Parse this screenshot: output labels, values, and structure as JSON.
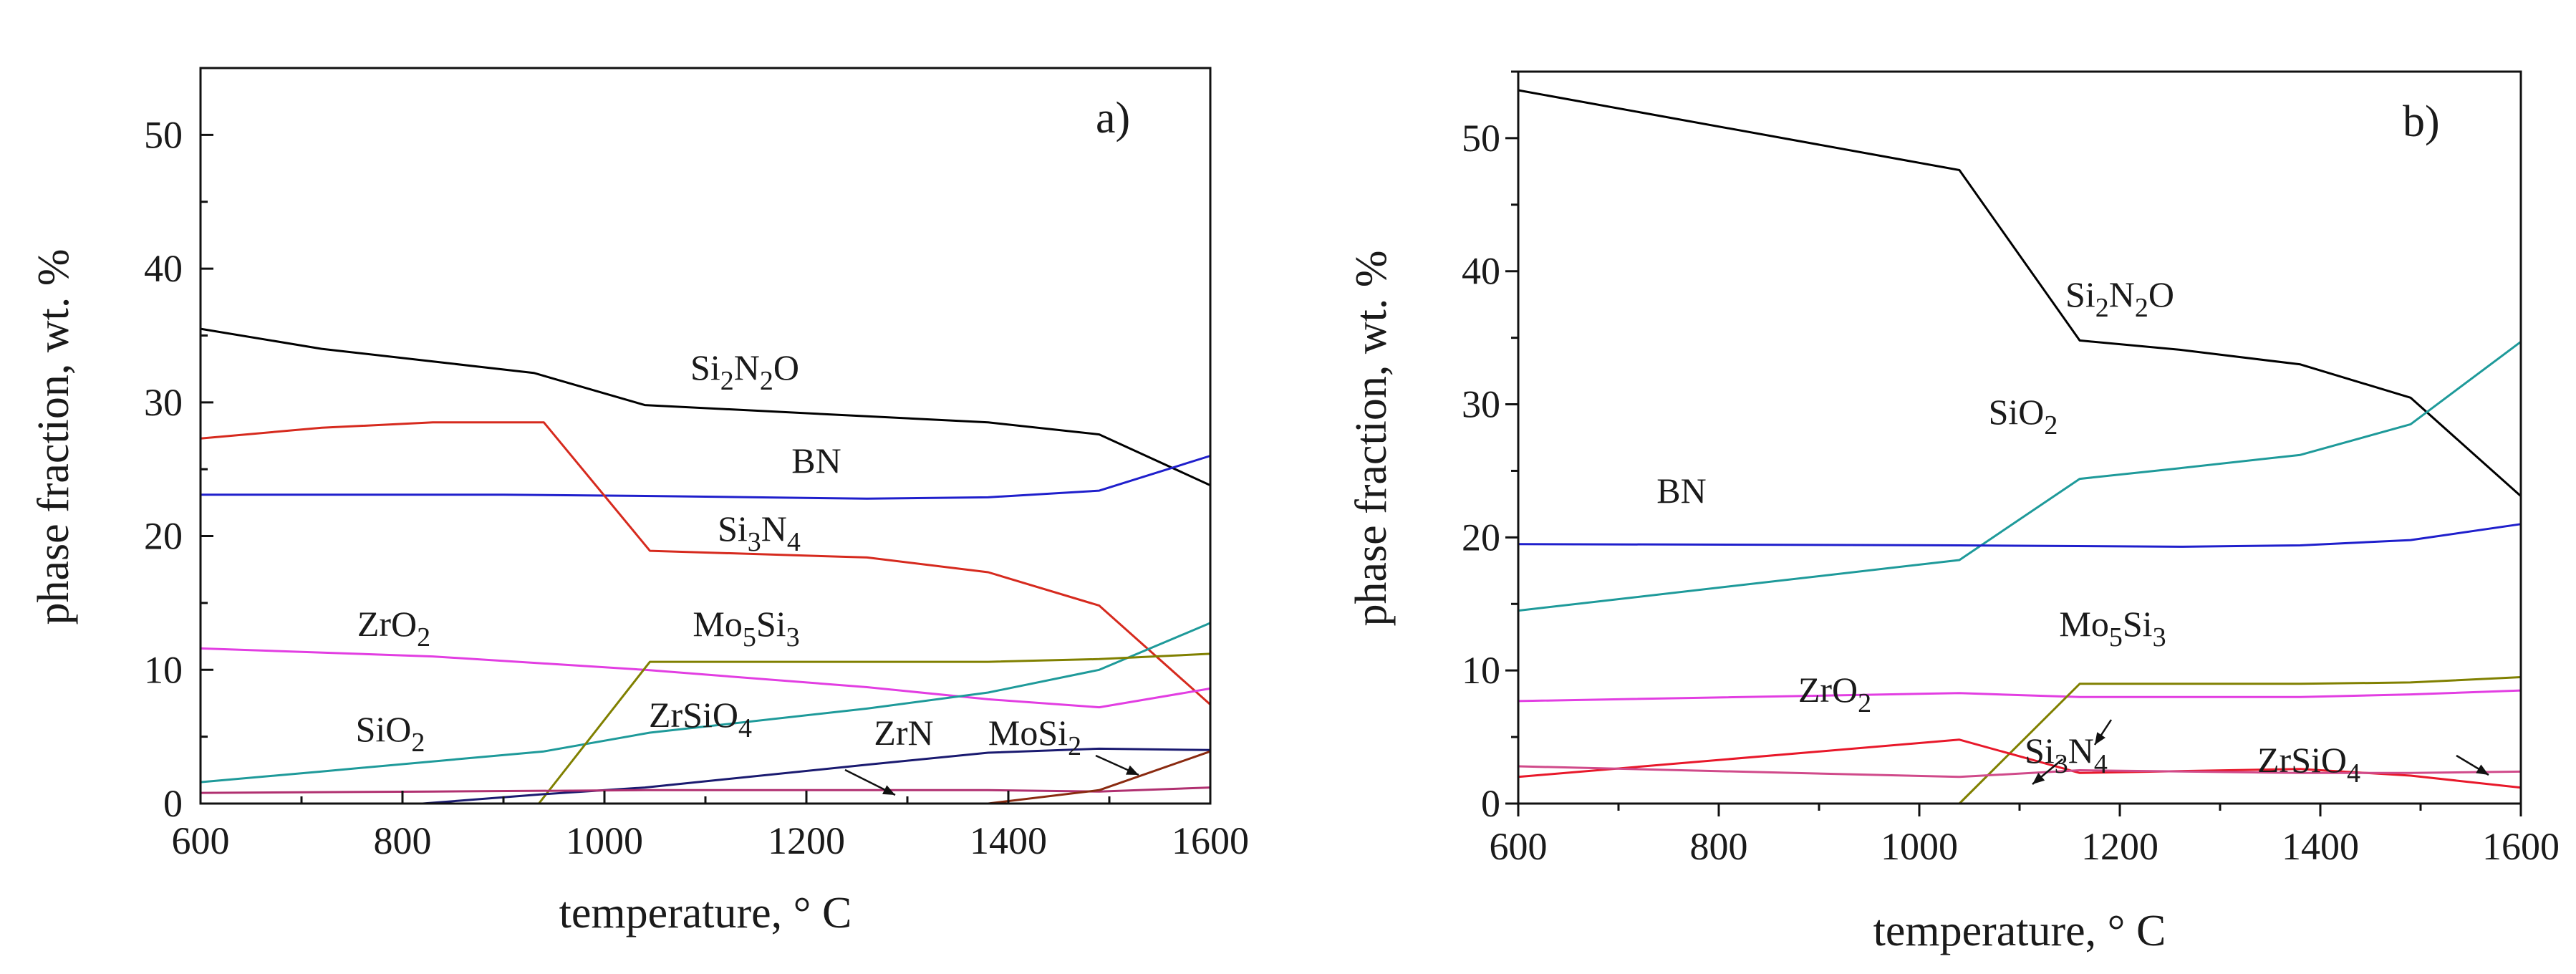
{
  "chart_data": [
    {
      "type": "line",
      "panel_label": "a)",
      "xlabel": "temperature, ° C",
      "ylabel": "phase fraction, wt. %",
      "xlim": [
        600,
        1600
      ],
      "ylim": [
        0,
        55
      ],
      "xticks": [
        600,
        800,
        1000,
        1200,
        1400,
        1600
      ],
      "yticks": [
        0,
        10,
        20,
        30,
        40,
        50
      ],
      "series": [
        {
          "name": "Si2N2O",
          "color": "#000000",
          "x": [
            600,
            720,
            930,
            1040,
            1380,
            1490,
            1600
          ],
          "y": [
            35.5,
            34,
            32.2,
            29.8,
            28.5,
            27.6,
            23.8
          ]
        },
        {
          "name": "BN",
          "color": "#1f1fcc",
          "x": [
            600,
            900,
            1040,
            1260,
            1380,
            1490,
            1600
          ],
          "y": [
            23.1,
            23.1,
            23,
            22.8,
            22.9,
            23.4,
            26
          ]
        },
        {
          "name": "Si3N4",
          "color": "#d62a1e",
          "x": [
            600,
            720,
            830,
            940,
            1045,
            1260,
            1380,
            1490,
            1600
          ],
          "y": [
            27.3,
            28.1,
            28.5,
            28.5,
            18.9,
            18.4,
            17.3,
            14.8,
            7.4
          ]
        },
        {
          "name": "ZrO2",
          "color": "#e23ee2",
          "x": [
            600,
            830,
            1040,
            1260,
            1380,
            1490,
            1600
          ],
          "y": [
            11.6,
            11,
            10,
            8.7,
            7.8,
            7.2,
            8.6
          ]
        },
        {
          "name": "SiO2",
          "color": "#1e9a9a",
          "x": [
            600,
            720,
            940,
            1045,
            1260,
            1380,
            1490,
            1600
          ],
          "y": [
            1.6,
            2.4,
            3.9,
            5.3,
            7.1,
            8.3,
            10,
            13.5
          ]
        },
        {
          "name": "Mo5Si3",
          "color": "#808000",
          "x": [
            600,
            935,
            1045,
            1380,
            1490,
            1600
          ],
          "y": [
            0,
            0,
            10.6,
            10.6,
            10.8,
            11.2
          ]
        },
        {
          "name": "ZrN",
          "color": "#1a1a70",
          "x": [
            600,
            820,
            940,
            1040,
            1260,
            1380,
            1490,
            1600
          ],
          "y": [
            0,
            0,
            0.7,
            1.2,
            2.9,
            3.8,
            4.1,
            4
          ]
        },
        {
          "name": "ZrSiO4",
          "color": "#b03070",
          "x": [
            600,
            830,
            1040,
            1380,
            1490,
            1600
          ],
          "y": [
            0.8,
            0.9,
            1,
            1,
            0.9,
            1.2
          ]
        },
        {
          "name": "MoSi2",
          "color": "#8a2a10",
          "x": [
            600,
            1380,
            1490,
            1600
          ],
          "y": [
            0,
            0,
            1,
            3.9
          ]
        }
      ],
      "annotations": [
        {
          "label": "Si2N2O",
          "base": "Si",
          "sub1": "2",
          "mid": "N",
          "sub2": "2",
          "tail": "O"
        },
        {
          "label": "BN",
          "base": "BN"
        },
        {
          "label": "Si3N4",
          "base": "Si",
          "sub1": "3",
          "mid": "N",
          "sub2": "4"
        },
        {
          "label": "ZrO2",
          "base": "ZrO",
          "sub1": "2"
        },
        {
          "label": "Mo5Si3",
          "base": "Mo",
          "sub1": "5",
          "mid": "Si",
          "sub2": "3"
        },
        {
          "label": "SiO2",
          "base": "SiO",
          "sub1": "2"
        },
        {
          "label": "ZrSiO4",
          "base": "ZrSiO",
          "sub1": "4"
        },
        {
          "label": "ZrN",
          "base": "ZrN"
        },
        {
          "label": "MoSi2",
          "base": "MoSi",
          "sub1": "2"
        }
      ]
    },
    {
      "type": "line",
      "panel_label": "b)",
      "xlabel": "temperature, ° C",
      "ylabel": "phase fraction, wt. %",
      "xlim": [
        600,
        1600
      ],
      "ylim": [
        0,
        55
      ],
      "xticks": [
        600,
        800,
        1000,
        1200,
        1400,
        1600
      ],
      "yticks": [
        0,
        10,
        20,
        30,
        40,
        50
      ],
      "series": [
        {
          "name": "Si2N2O",
          "color": "#000000",
          "x": [
            600,
            1040,
            1160,
            1260,
            1380,
            1490,
            1600
          ],
          "y": [
            53.6,
            47.6,
            34.8,
            34.1,
            33,
            30.5,
            23.1
          ]
        },
        {
          "name": "SiO2",
          "color": "#1e9a9a",
          "x": [
            600,
            1040,
            1160,
            1260,
            1380,
            1490,
            1600
          ],
          "y": [
            14.5,
            18.3,
            24.4,
            25.2,
            26.2,
            28.5,
            34.7
          ]
        },
        {
          "name": "BN",
          "color": "#1f1fcc",
          "x": [
            600,
            1040,
            1260,
            1380,
            1490,
            1600
          ],
          "y": [
            19.5,
            19.4,
            19.3,
            19.4,
            19.8,
            21
          ]
        },
        {
          "name": "ZrO2",
          "color": "#e23ee2",
          "x": [
            600,
            1040,
            1160,
            1380,
            1490,
            1600
          ],
          "y": [
            7.7,
            8.3,
            8,
            8,
            8.2,
            8.5
          ]
        },
        {
          "name": "Mo5Si3",
          "color": "#808000",
          "x": [
            600,
            1040,
            1160,
            1380,
            1490,
            1600
          ],
          "y": [
            0,
            0,
            9,
            9,
            9.1,
            9.5
          ]
        },
        {
          "name": "Si3N4",
          "color": "#e8182a",
          "x": [
            600,
            1040,
            1160,
            1380,
            1490,
            1600
          ],
          "y": [
            2,
            4.8,
            2.3,
            2.6,
            2.1,
            1.2
          ]
        },
        {
          "name": "ZrSiO4",
          "color": "#d04a8a",
          "x": [
            600,
            1040,
            1160,
            1380,
            1490,
            1600
          ],
          "y": [
            2.8,
            2,
            2.5,
            2.3,
            2.3,
            2.4
          ]
        }
      ],
      "annotations": [
        {
          "label": "Si2N2O",
          "base": "Si",
          "sub1": "2",
          "mid": "N",
          "sub2": "2",
          "tail": "O"
        },
        {
          "label": "SiO2",
          "base": "SiO",
          "sub1": "2"
        },
        {
          "label": "BN",
          "base": "BN"
        },
        {
          "label": "ZrO2",
          "base": "ZrO",
          "sub1": "2"
        },
        {
          "label": "Mo5Si3",
          "base": "Mo",
          "sub1": "5",
          "mid": "Si",
          "sub2": "3"
        },
        {
          "label": "Si3N4",
          "base": "Si",
          "sub1": "3",
          "mid": "N",
          "sub2": "4"
        },
        {
          "label": "ZrSiO4",
          "base": "ZrSiO",
          "sub1": "4"
        }
      ]
    }
  ]
}
